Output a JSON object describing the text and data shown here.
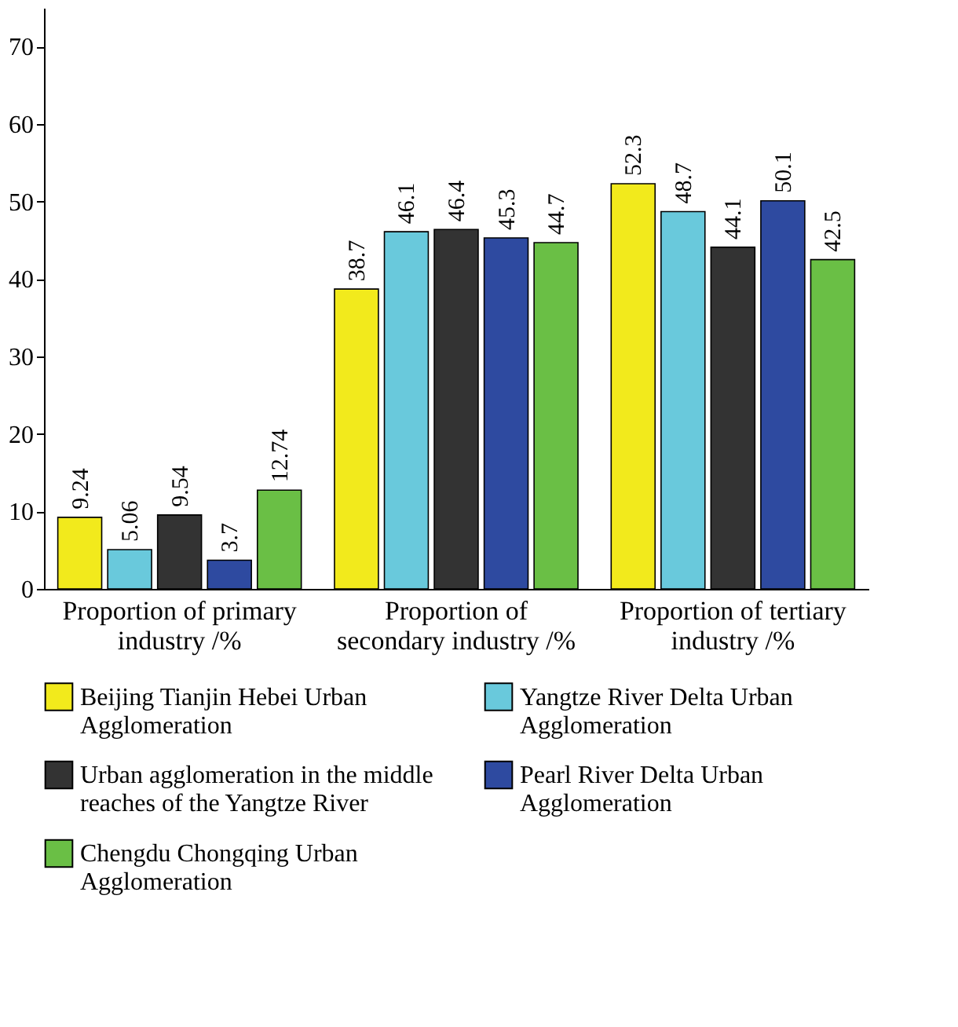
{
  "chart_data": {
    "type": "bar",
    "categories": [
      "Proportion of primary industry /%",
      "Proportion of secondary industry /%",
      "Proportion of tertiary industry /%"
    ],
    "series": [
      {
        "name": "Beijing Tianjin Hebei Urban Agglomeration",
        "color": "#f2ea1c",
        "values": [
          9.24,
          38.7,
          52.3
        ]
      },
      {
        "name": "Yangtze River Delta Urban Agglomeration",
        "color": "#69c9dc",
        "values": [
          5.06,
          46.1,
          48.7
        ]
      },
      {
        "name": "Urban agglomeration in the middle reaches of the Yangtze River",
        "color": "#333333",
        "values": [
          9.54,
          46.4,
          44.1
        ]
      },
      {
        "name": "Pearl River Delta Urban Agglomeration",
        "color": "#2e4aa0",
        "values": [
          3.7,
          45.3,
          50.1
        ]
      },
      {
        "name": "Chengdu Chongqing Urban Agglomeration",
        "color": "#6abf45",
        "values": [
          12.74,
          44.7,
          42.5
        ]
      }
    ],
    "ylim": [
      0,
      75
    ],
    "yticks": [
      0,
      10,
      20,
      30,
      40,
      50,
      60,
      70
    ],
    "data_labels": true,
    "grid": false,
    "legend": "bottom"
  }
}
